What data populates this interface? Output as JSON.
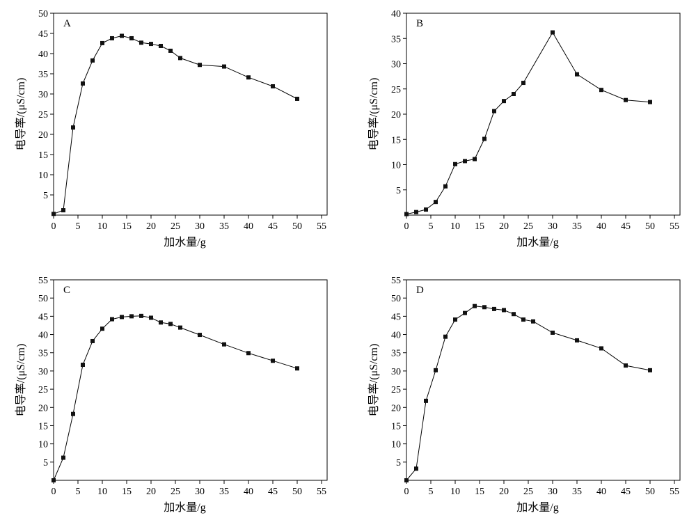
{
  "chart_data": [
    {
      "type": "line",
      "panel_label": "A",
      "xlabel": "加水量/g",
      "ylabel": "电导率/(μS/cm)",
      "xlim": [
        0,
        55
      ],
      "ylim": [
        0,
        50
      ],
      "xticks": [
        0,
        5,
        10,
        15,
        20,
        25,
        30,
        35,
        40,
        45,
        50,
        55
      ],
      "yticks": [
        5,
        10,
        15,
        20,
        25,
        30,
        35,
        40,
        45,
        50
      ],
      "grid": false,
      "x": [
        0,
        2,
        4,
        6,
        8,
        10,
        12,
        14,
        16,
        18,
        20,
        22,
        24,
        26,
        30,
        35,
        40,
        45,
        50
      ],
      "y": [
        0.3,
        1.2,
        21.7,
        32.6,
        38.3,
        42.6,
        43.8,
        44.4,
        43.8,
        42.7,
        42.4,
        41.9,
        40.7,
        38.9,
        37.2,
        36.8,
        34.1,
        31.9,
        28.8
      ]
    },
    {
      "type": "line",
      "panel_label": "B",
      "xlabel": "加水量/g",
      "ylabel": "电导率/(μS/cm)",
      "xlim": [
        0,
        55
      ],
      "ylim": [
        0,
        40
      ],
      "xticks": [
        0,
        5,
        10,
        15,
        20,
        25,
        30,
        35,
        40,
        45,
        50,
        55
      ],
      "yticks": [
        5,
        10,
        15,
        20,
        25,
        30,
        35,
        40
      ],
      "grid": false,
      "x": [
        0,
        2,
        4,
        6,
        8,
        10,
        12,
        14,
        16,
        18,
        20,
        22,
        24,
        30,
        35,
        40,
        45,
        50
      ],
      "y": [
        0.2,
        0.6,
        1.1,
        2.6,
        5.7,
        10.1,
        10.7,
        11.1,
        15.1,
        20.6,
        22.6,
        24.0,
        26.2,
        36.2,
        27.9,
        24.8,
        22.8,
        22.4
      ]
    },
    {
      "type": "line",
      "panel_label": "C",
      "xlabel": "加水量/g",
      "ylabel": "电导率/(μS/cm)",
      "xlim": [
        0,
        55
      ],
      "ylim": [
        0,
        55
      ],
      "xticks": [
        0,
        5,
        10,
        15,
        20,
        25,
        30,
        35,
        40,
        45,
        50,
        55
      ],
      "yticks": [
        5,
        10,
        15,
        20,
        25,
        30,
        35,
        40,
        45,
        50,
        55
      ],
      "grid": false,
      "x": [
        0,
        2,
        4,
        6,
        8,
        10,
        12,
        14,
        16,
        18,
        20,
        22,
        24,
        26,
        30,
        35,
        40,
        45,
        50
      ],
      "y": [
        0,
        6.2,
        18.2,
        31.7,
        38.2,
        41.6,
        44.2,
        44.8,
        45.0,
        45.1,
        44.6,
        43.3,
        42.9,
        41.9,
        39.9,
        37.3,
        34.9,
        32.8,
        30.7
      ]
    },
    {
      "type": "line",
      "panel_label": "D",
      "xlabel": "加水量/g",
      "ylabel": "电导率/(μS/cm)",
      "xlim": [
        0,
        55
      ],
      "ylim": [
        0,
        55
      ],
      "xticks": [
        0,
        5,
        10,
        15,
        20,
        25,
        30,
        35,
        40,
        45,
        50,
        55
      ],
      "yticks": [
        5,
        10,
        15,
        20,
        25,
        30,
        35,
        40,
        45,
        50,
        55
      ],
      "grid": false,
      "x": [
        0,
        2,
        4,
        6,
        8,
        10,
        12,
        14,
        16,
        18,
        20,
        22,
        24,
        26,
        30,
        35,
        40,
        45,
        50
      ],
      "y": [
        0,
        3.2,
        21.8,
        30.2,
        39.4,
        44.1,
        45.9,
        47.8,
        47.5,
        47.0,
        46.7,
        45.6,
        44.1,
        43.6,
        40.5,
        38.4,
        36.2,
        31.5,
        30.2
      ]
    }
  ]
}
